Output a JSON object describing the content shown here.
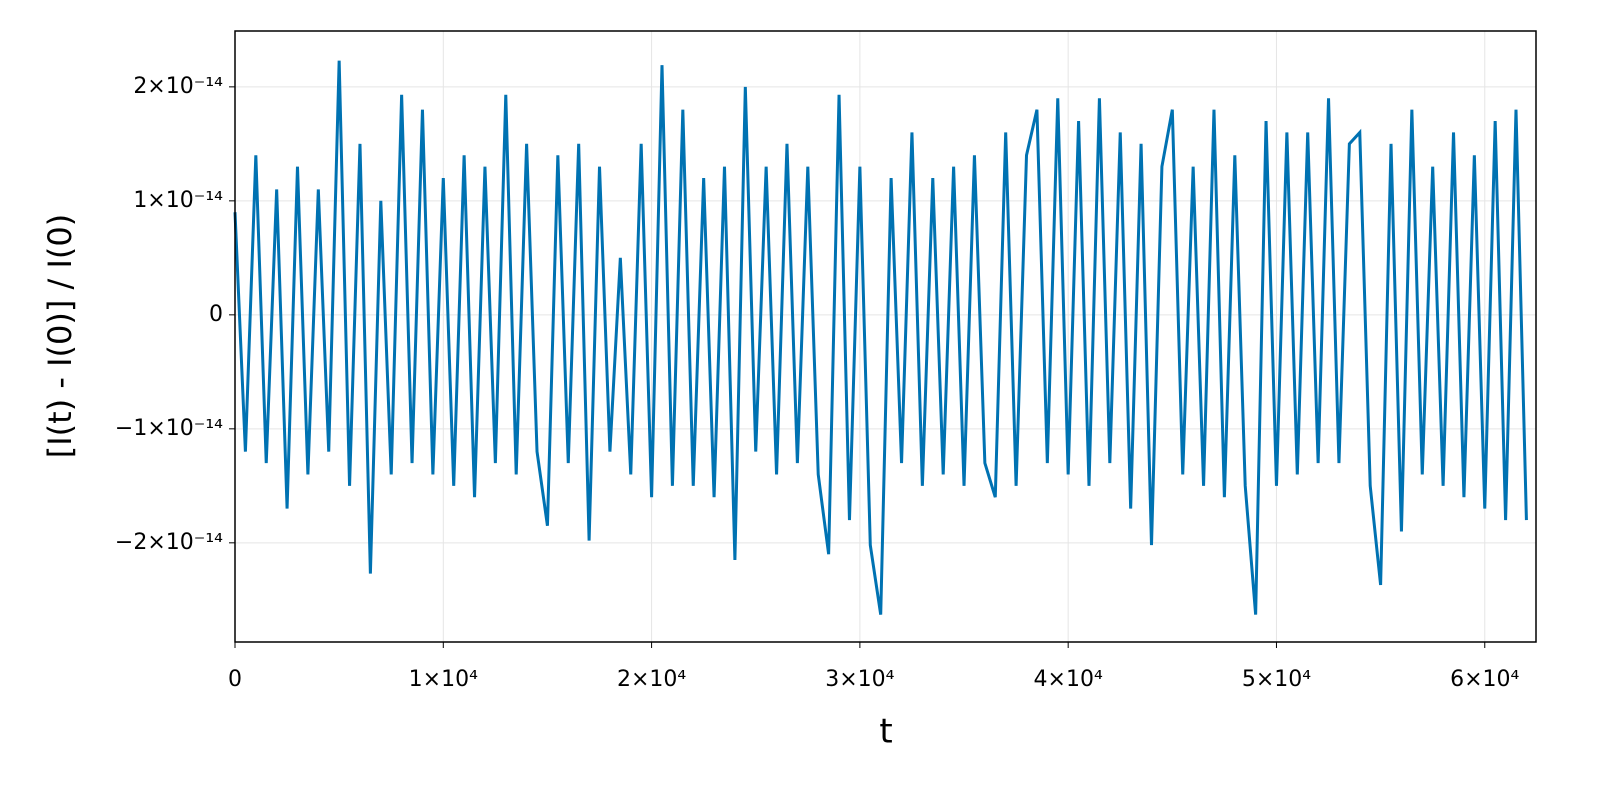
{
  "chart_data": {
    "type": "line",
    "x_label": "t",
    "y_label": "[I(t) - I(0)] / I(0)",
    "x": [
      0,
      500,
      1000,
      1500,
      2000,
      2500,
      3000,
      3500,
      4000,
      4500,
      5000,
      5500,
      6000,
      6500,
      7000,
      7500,
      8000,
      8500,
      9000,
      9500,
      10000,
      10500,
      11000,
      11500,
      12000,
      12500,
      13000,
      13500,
      14000,
      14500,
      15000,
      15500,
      16000,
      16500,
      17000,
      17500,
      18000,
      18500,
      19000,
      19500,
      20000,
      20500,
      21000,
      21500,
      22000,
      22500,
      23000,
      23500,
      24000,
      24500,
      25000,
      25500,
      26000,
      26500,
      27000,
      27500,
      28000,
      28500,
      29000,
      29500,
      30000,
      30500,
      31000,
      31500,
      32000,
      32500,
      33000,
      33500,
      34000,
      34500,
      35000,
      35500,
      36000,
      36500,
      37000,
      37500,
      38000,
      38500,
      39000,
      39500,
      40000,
      40500,
      41000,
      41500,
      42000,
      42500,
      43000,
      43500,
      44000,
      44500,
      45000,
      45500,
      46000,
      46500,
      47000,
      47500,
      48000,
      48500,
      49000,
      49500,
      50000,
      50500,
      51000,
      51500,
      52000,
      52500,
      53000,
      53500,
      54000,
      54500,
      55000,
      55500,
      56000,
      56500,
      57000,
      57500,
      58000,
      58500,
      59000,
      59500,
      60000,
      60500,
      61000,
      61500,
      62000
    ],
    "series": [
      {
        "name": "I",
        "color": "#0072b2",
        "values": [
          9e-15,
          -1.2e-14,
          1.4e-14,
          -1.3e-14,
          1.1e-14,
          -1.7e-14,
          1.3e-14,
          -1.4e-14,
          1.1e-14,
          -1.2e-14,
          2.23e-14,
          -1.5e-14,
          1.5e-14,
          -2.27e-14,
          1e-14,
          -1.4e-14,
          1.93e-14,
          -1.3e-14,
          1.8e-14,
          -1.4e-14,
          1.2e-14,
          -1.5e-14,
          1.4e-14,
          -1.6e-14,
          1.3e-14,
          -1.3e-14,
          1.93e-14,
          -1.4e-14,
          1.5e-14,
          -1.2e-14,
          -1.85e-14,
          1.4e-14,
          -1.3e-14,
          1.5e-14,
          -1.98e-14,
          1.3e-14,
          -1.2e-14,
          5e-15,
          -1.4e-14,
          1.5e-14,
          -1.6e-14,
          2.19e-14,
          -1.5e-14,
          1.8e-14,
          -1.5e-14,
          1.2e-14,
          -1.6e-14,
          1.3e-14,
          -2.15e-14,
          2e-14,
          -1.2e-14,
          1.3e-14,
          -1.4e-14,
          1.5e-14,
          -1.3e-14,
          1.3e-14,
          -1.4e-14,
          -2.1e-14,
          1.93e-14,
          -1.8e-14,
          1.3e-14,
          -2.02e-14,
          -2.63e-14,
          1.2e-14,
          -1.3e-14,
          1.6e-14,
          -1.5e-14,
          1.2e-14,
          -1.4e-14,
          1.3e-14,
          -1.5e-14,
          1.4e-14,
          -1.3e-14,
          -1.6e-14,
          1.6e-14,
          -1.5e-14,
          1.4e-14,
          1.8e-14,
          -1.3e-14,
          1.9e-14,
          -1.4e-14,
          1.7e-14,
          -1.5e-14,
          1.9e-14,
          -1.3e-14,
          1.6e-14,
          -1.7e-14,
          1.5e-14,
          -2.02e-14,
          1.3e-14,
          1.8e-14,
          -1.4e-14,
          1.3e-14,
          -1.5e-14,
          1.8e-14,
          -1.6e-14,
          1.4e-14,
          -1.5e-14,
          -2.63e-14,
          1.7e-14,
          -1.5e-14,
          1.6e-14,
          -1.4e-14,
          1.6e-14,
          -1.3e-14,
          1.9e-14,
          -1.3e-14,
          1.5e-14,
          1.6e-14,
          -1.5e-14,
          -2.37e-14,
          1.5e-14,
          -1.9e-14,
          1.8e-14,
          -1.4e-14,
          1.3e-14,
          -1.5e-14,
          1.6e-14,
          -1.6e-14,
          1.4e-14,
          -1.7e-14,
          1.7e-14,
          -1.8e-14,
          1.8e-14,
          -1.8e-14
        ]
      }
    ],
    "xlim": [
      0,
      62460
    ],
    "ylim": [
      -2.87e-14,
      2.49e-14
    ],
    "xticks": [
      0,
      {
        "value": 10000,
        "label": "1×10⁴"
      },
      {
        "value": 20000,
        "label": "2×10⁴"
      },
      {
        "value": 30000,
        "label": "3×10⁴"
      },
      {
        "value": 40000,
        "label": "4×10⁴"
      },
      {
        "value": 50000,
        "label": "5×10⁴"
      },
      {
        "value": 60000,
        "label": "6×10⁴"
      }
    ],
    "yticks": [
      {
        "value": -2e-14,
        "label": "−2×10⁻¹⁴"
      },
      {
        "value": -1e-14,
        "label": "−1×10⁻¹⁴"
      },
      0,
      {
        "value": 1e-14,
        "label": "1×10⁻¹⁴"
      },
      {
        "value": 2e-14,
        "label": "2×10⁻¹⁴"
      }
    ],
    "grid": true
  }
}
